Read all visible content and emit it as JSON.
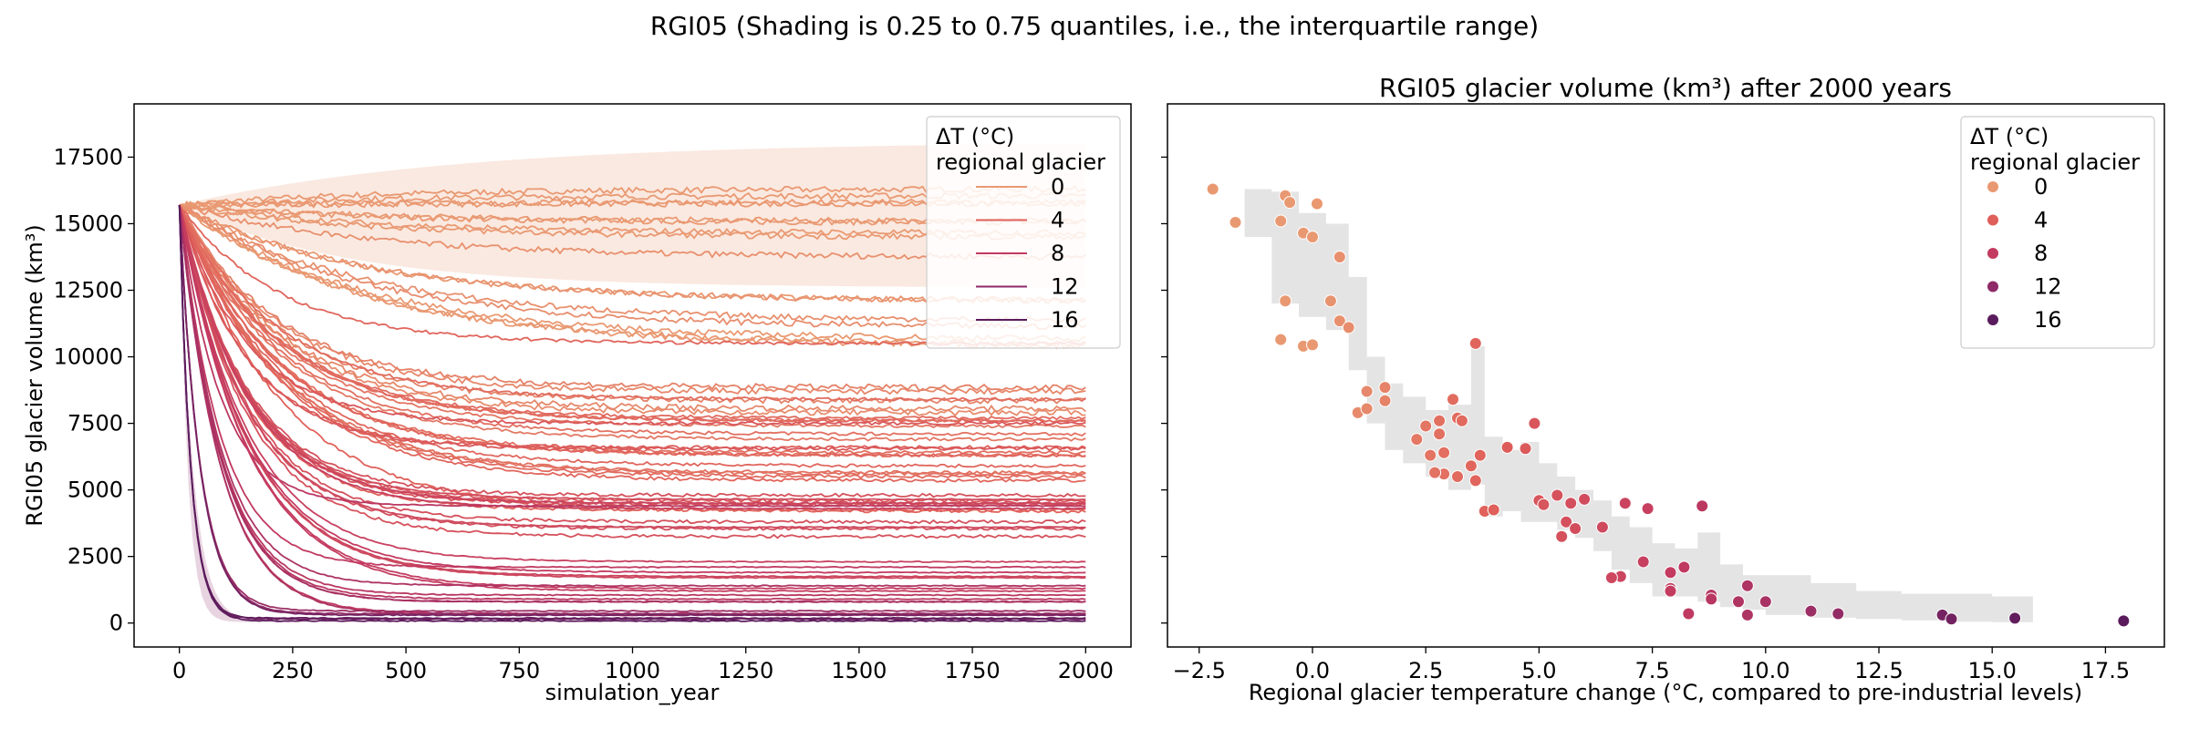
{
  "figure": {
    "suptitle": "RGI05 (Shading is 0.25 to 0.75 quantiles, i.e., the interquartile range)"
  },
  "legend": {
    "title_line1": "ΔT (°C)",
    "title_line2": "regional glacier",
    "entries": [
      {
        "label": "0",
        "value": 0,
        "color": "#E99972"
      },
      {
        "label": "4",
        "value": 4,
        "color": "#DF5F5A"
      },
      {
        "label": "8",
        "value": 8,
        "color": "#C33A60"
      },
      {
        "label": "12",
        "value": 12,
        "color": "#8E2A67"
      },
      {
        "label": "16",
        "value": 16,
        "color": "#5A1B5C"
      }
    ]
  },
  "chart_data": [
    {
      "type": "line",
      "title": "",
      "xlabel": "simulation_year",
      "ylabel": "RGI05 glacier volume (km³)",
      "xlim": [
        -100,
        2100
      ],
      "ylim": [
        -900,
        19500
      ],
      "xticks": [
        0,
        250,
        500,
        750,
        1000,
        1250,
        1500,
        1750,
        2000
      ],
      "yticks": [
        0,
        2500,
        5000,
        7500,
        10000,
        12500,
        15000,
        17500
      ],
      "grid": false,
      "legend_position": "top-right",
      "initial_volume": 15700,
      "x_range": [
        0,
        2000
      ],
      "note": "approx. 72 series, one per regional glacier temperature change; final volume (year 2000) listed per series",
      "series": [
        {
          "dT": -2.2,
          "final": 16300
        },
        {
          "dT": -1.7,
          "final": 15050
        },
        {
          "dT": -0.7,
          "final": 15100
        },
        {
          "dT": -0.6,
          "final": 16050
        },
        {
          "dT": -0.5,
          "final": 15800
        },
        {
          "dT": 0.1,
          "final": 15750
        },
        {
          "dT": -0.6,
          "final": 12100
        },
        {
          "dT": -0.2,
          "final": 14650
        },
        {
          "dT": 0.4,
          "final": 12100
        },
        {
          "dT": 0.6,
          "final": 13750
        },
        {
          "dT": 0.0,
          "final": 14500
        },
        {
          "dT": -0.7,
          "final": 10650
        },
        {
          "dT": -0.2,
          "final": 10400
        },
        {
          "dT": 0.0,
          "final": 10450
        },
        {
          "dT": 0.6,
          "final": 11350
        },
        {
          "dT": 0.8,
          "final": 11100
        },
        {
          "dT": 1.2,
          "final": 8700
        },
        {
          "dT": 1.0,
          "final": 7900
        },
        {
          "dT": 1.2,
          "final": 8050
        },
        {
          "dT": 1.6,
          "final": 8850
        },
        {
          "dT": 1.6,
          "final": 8350
        },
        {
          "dT": 2.5,
          "final": 7400
        },
        {
          "dT": 2.3,
          "final": 6900
        },
        {
          "dT": 2.8,
          "final": 7600
        },
        {
          "dT": 3.1,
          "final": 8400
        },
        {
          "dT": 3.2,
          "final": 7700
        },
        {
          "dT": 3.3,
          "final": 7600
        },
        {
          "dT": 2.8,
          "final": 7100
        },
        {
          "dT": 2.6,
          "final": 6300
        },
        {
          "dT": 2.9,
          "final": 6400
        },
        {
          "dT": 2.9,
          "final": 5600
        },
        {
          "dT": 2.7,
          "final": 5650
        },
        {
          "dT": 3.2,
          "final": 5500
        },
        {
          "dT": 3.5,
          "final": 5900
        },
        {
          "dT": 3.6,
          "final": 5350
        },
        {
          "dT": 3.7,
          "final": 6300
        },
        {
          "dT": 3.8,
          "final": 4200
        },
        {
          "dT": 4.0,
          "final": 4250
        },
        {
          "dT": 3.6,
          "final": 10500
        },
        {
          "dT": 4.3,
          "final": 6600
        },
        {
          "dT": 4.7,
          "final": 6550
        },
        {
          "dT": 4.9,
          "final": 7500
        },
        {
          "dT": 5.0,
          "final": 4600
        },
        {
          "dT": 5.1,
          "final": 4450
        },
        {
          "dT": 5.4,
          "final": 4800
        },
        {
          "dT": 5.7,
          "final": 4500
        },
        {
          "dT": 5.6,
          "final": 3800
        },
        {
          "dT": 5.5,
          "final": 3250
        },
        {
          "dT": 5.8,
          "final": 3550
        },
        {
          "dT": 6.0,
          "final": 4650
        },
        {
          "dT": 6.4,
          "final": 3600
        },
        {
          "dT": 6.9,
          "final": 4500
        },
        {
          "dT": 7.4,
          "final": 4300
        },
        {
          "dT": 8.6,
          "final": 4400
        },
        {
          "dT": 6.8,
          "final": 1750
        },
        {
          "dT": 6.6,
          "final": 1700
        },
        {
          "dT": 7.3,
          "final": 2300
        },
        {
          "dT": 7.9,
          "final": 1900
        },
        {
          "dT": 8.2,
          "final": 2100
        },
        {
          "dT": 7.9,
          "final": 1300
        },
        {
          "dT": 7.9,
          "final": 1200
        },
        {
          "dT": 8.3,
          "final": 350
        },
        {
          "dT": 8.8,
          "final": 1050
        },
        {
          "dT": 8.8,
          "final": 900
        },
        {
          "dT": 9.4,
          "final": 800
        },
        {
          "dT": 9.6,
          "final": 1400
        },
        {
          "dT": 9.6,
          "final": 300
        },
        {
          "dT": 10.0,
          "final": 800
        },
        {
          "dT": 11.0,
          "final": 450
        },
        {
          "dT": 11.6,
          "final": 350
        },
        {
          "dT": 13.9,
          "final": 300
        },
        {
          "dT": 14.1,
          "final": 150
        },
        {
          "dT": 15.5,
          "final": 180
        },
        {
          "dT": 17.9,
          "final": 80
        }
      ]
    },
    {
      "type": "scatter",
      "title": "RGI05 glacier volume (km³) after 2000 years",
      "xlabel": "Regional glacier temperature change (°C, compared to pre-industrial levels)",
      "ylabel": "",
      "xlim": [
        -3.2,
        18.8
      ],
      "ylim": [
        -900,
        19500
      ],
      "xticks": [
        -2.5,
        0.0,
        2.5,
        5.0,
        7.5,
        10.0,
        12.5,
        15.0,
        17.5
      ],
      "xtick_labels": [
        "−2.5",
        "0.0",
        "2.5",
        "5.0",
        "7.5",
        "10.0",
        "12.5",
        "15.0",
        "17.5"
      ],
      "legend_position": "top-right",
      "points_note": "same (dT, final volume) pairs as chart 1 series",
      "iqr_band": [
        [
          -1.5,
          14500,
          16300
        ],
        [
          -0.9,
          12000,
          16200
        ],
        [
          -0.3,
          11500,
          15400
        ],
        [
          0.3,
          11000,
          15000
        ],
        [
          0.8,
          9500,
          13000
        ],
        [
          1.2,
          7500,
          10000
        ],
        [
          1.6,
          6500,
          9000
        ],
        [
          2.0,
          6000,
          8500
        ],
        [
          2.5,
          5500,
          8000
        ],
        [
          3.0,
          5000,
          8200
        ],
        [
          3.5,
          5200,
          10400
        ],
        [
          3.8,
          4000,
          7000
        ],
        [
          4.2,
          4200,
          6500
        ],
        [
          4.6,
          3800,
          6800
        ],
        [
          5.0,
          3800,
          6000
        ],
        [
          5.4,
          3500,
          5500
        ],
        [
          5.8,
          3200,
          5000
        ],
        [
          6.2,
          2700,
          4600
        ],
        [
          6.6,
          2000,
          4000
        ],
        [
          7.0,
          1500,
          3600
        ],
        [
          7.5,
          1000,
          3000
        ],
        [
          8.0,
          1000,
          2800
        ],
        [
          8.5,
          800,
          3400
        ],
        [
          9.0,
          600,
          2200
        ],
        [
          9.5,
          500,
          1800
        ],
        [
          10.0,
          300,
          1800
        ],
        [
          11.0,
          200,
          1500
        ],
        [
          12.0,
          150,
          1200
        ],
        [
          13.0,
          100,
          1100
        ],
        [
          14.0,
          50,
          1100
        ],
        [
          15.0,
          30,
          1000
        ],
        [
          15.9,
          20,
          1000
        ]
      ]
    }
  ]
}
